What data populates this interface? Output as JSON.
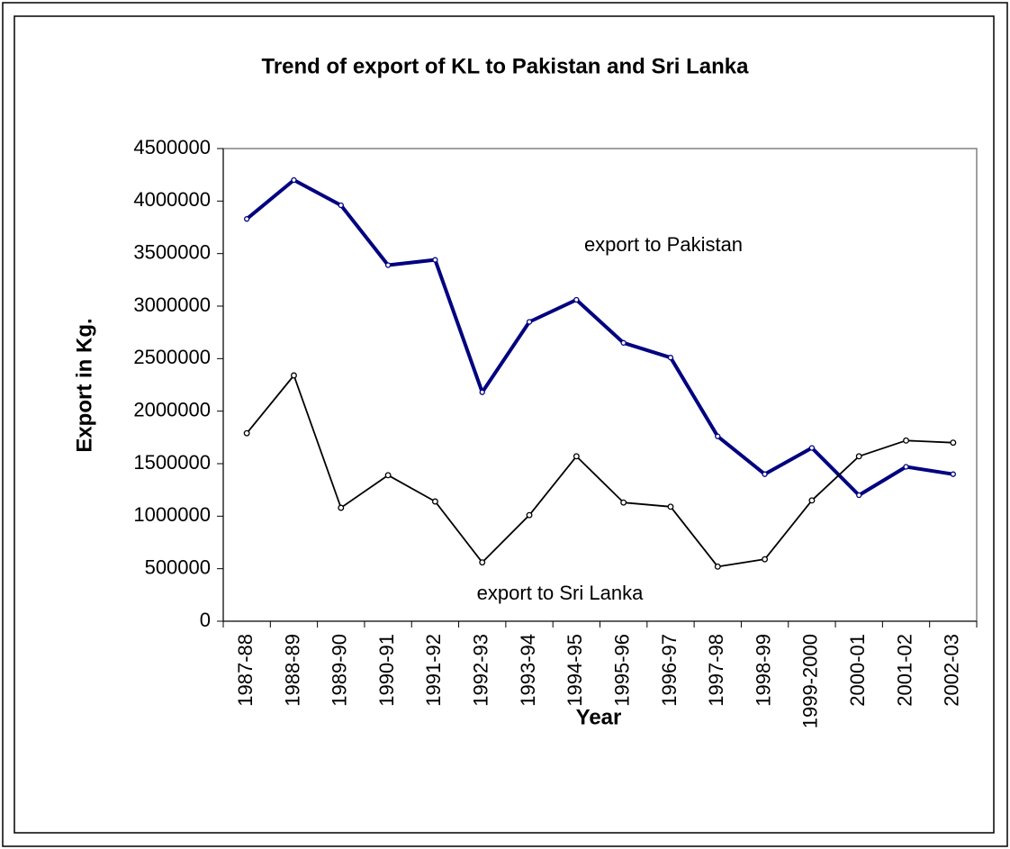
{
  "chart_data": {
    "type": "line",
    "title": "Trend of export of KL to Pakistan and Sri Lanka",
    "x_label": "Year",
    "y_label": "Export in Kg.",
    "categories": [
      "1987-88",
      "1988-89",
      "1989-90",
      "1990-91",
      "1991-92",
      "1992-93",
      "1993-94",
      "1994-95",
      "1995-96",
      "1996-97",
      "1997-98",
      "1998-99",
      "1999-2000",
      "2000-01",
      "2001-02",
      "2002-03"
    ],
    "series": [
      {
        "name": "export to Pakistan",
        "color": "#000080",
        "values": [
          3830000,
          4200000,
          3960000,
          3390000,
          3440000,
          2180000,
          2850000,
          3060000,
          2650000,
          2510000,
          1760000,
          1400000,
          1650000,
          1200000,
          1470000,
          1400000
        ]
      },
      {
        "name": "export to Sri Lanka",
        "color": "#000000",
        "values": [
          1790000,
          2340000,
          1080000,
          1390000,
          1140000,
          560000,
          1010000,
          1570000,
          1130000,
          1090000,
          520000,
          590000,
          1150000,
          1570000,
          1720000,
          1700000
        ]
      }
    ],
    "ylim": [
      0,
      4500000
    ],
    "yticks": [
      0,
      500000,
      1000000,
      1500000,
      2000000,
      2500000,
      3000000,
      3500000,
      4000000,
      4500000
    ],
    "grid": false
  }
}
